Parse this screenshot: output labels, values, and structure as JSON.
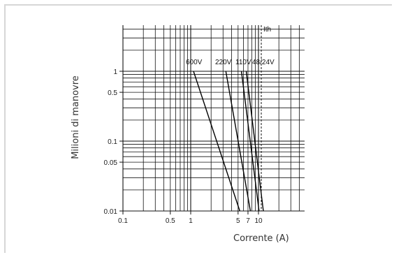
{
  "chart_data": {
    "type": "line",
    "title": "",
    "xlabel": "Corrente (A)",
    "ylabel": "Milioni di manovre",
    "x_scale": "log",
    "y_scale": "log",
    "xlim": [
      0.1,
      30
    ],
    "ylim": [
      0.01,
      10
    ],
    "grid": true,
    "x_ticks": [
      {
        "value": 0.1,
        "label": "0.1"
      },
      {
        "value": 0.5,
        "label": "0.5"
      },
      {
        "value": 1,
        "label": "1"
      },
      {
        "value": 5,
        "label": "5"
      },
      {
        "value": 7,
        "label": "7"
      },
      {
        "value": 10,
        "label": "10"
      }
    ],
    "y_ticks": [
      {
        "value": 0.01,
        "label": "0.01"
      },
      {
        "value": 0.05,
        "label": "0.05"
      },
      {
        "value": 0.1,
        "label": "0.1"
      },
      {
        "value": 0.5,
        "label": "0.5"
      },
      {
        "value": 1,
        "label": "1"
      }
    ],
    "series": [
      {
        "name": "600V",
        "x": [
          1.1,
          5.3
        ],
        "y": [
          1,
          0.01
        ]
      },
      {
        "name": "220V",
        "x": [
          3.3,
          7.6
        ],
        "y": [
          1,
          0.01
        ]
      },
      {
        "name": "110V",
        "x": [
          5.6,
          10.2
        ],
        "y": [
          1,
          0.01
        ]
      },
      {
        "name": "48/24V",
        "x": [
          6.6,
          11.8
        ],
        "y": [
          1,
          0.01
        ]
      }
    ],
    "series_labels": [
      {
        "series": "600V",
        "text": "600V"
      },
      {
        "series": "220V",
        "text": "220V"
      },
      {
        "series": "110V",
        "text": "110V"
      },
      {
        "series": "48/24V",
        "text": "48/24V"
      }
    ],
    "reference_line": {
      "label": "Ith",
      "x": 10,
      "style": "dashed"
    }
  },
  "colors": {
    "frame": "#d6d6d6",
    "grid": "#111111",
    "series": "#000000",
    "text": "#222222"
  }
}
